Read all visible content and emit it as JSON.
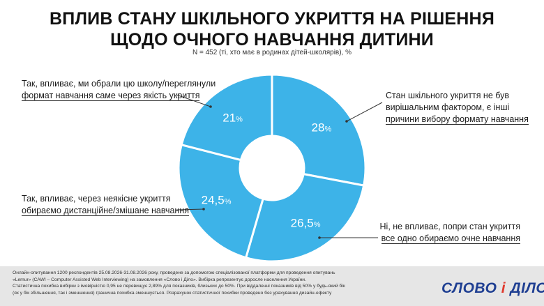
{
  "header": {
    "title_line1": "ВПЛИВ СТАНУ ШКІЛЬНОГО УКРИТТЯ НА РІШЕННЯ",
    "title_line2": "ЩОДО ОЧНОГО НАВЧАННЯ ДИТИНИ",
    "subtitle": "N = 452 (ті, хто має в родинах дітей-школярів), %"
  },
  "chart_data": {
    "type": "pie",
    "variant": "donut",
    "title": "ВПЛИВ СТАНУ ШКІЛЬНОГО УКРИТТЯ НА РІШЕННЯ ЩОДО ОЧНОГО НАВЧАННЯ ДИТИНИ",
    "unit": "%",
    "color": "#3db3e8",
    "slices": [
      {
        "value": 28,
        "display": "28",
        "label_lines": [
          "Стан шкільного укриття не був",
          "вирішальним фактором, є інші",
          "причини вибору формату навчання"
        ]
      },
      {
        "value": 26.5,
        "display": "26,5",
        "label_lines": [
          "Ні, не впливає, попри стан укриття",
          "все одно обираємо очне навчання"
        ]
      },
      {
        "value": 24.5,
        "display": "24,5",
        "label_lines": [
          "Так, впливає, через неякісне укриття",
          "обираємо дистанційне/змішане навчання"
        ]
      },
      {
        "value": 21,
        "display": "21",
        "label_lines": [
          "Так, впливає, ми обрали цю школу/переглянули",
          "формат навчання саме через якість укриття"
        ]
      }
    ]
  },
  "footer": {
    "lines": [
      "Онлайн-опитування 1200 респондентів 25.08.2026-31.08.2026 року, проведене за допомогою спеціалізованої платформи для проведення опитувань",
      "«Lemur» (CAWI – Computer Assisted Web Interviewing) на замовлення «Слово і Діло». Вибірка репрезентує доросле населення України.",
      "Статистична похибка вибірки з імовірністю 0,95 не перевищує 2,89% для показників, близьких до 50%.  При віддаленні показників від 50% у будь-який бік",
      "(як у бік збільшення, так і зменшення) гранична похибка зменшується. Розрахунок статистичної похибки проведено без урахування дизайн-ефекту"
    ],
    "logo_left": "СЛОВО",
    "logo_sep": "і",
    "logo_right": "ДІЛО"
  }
}
